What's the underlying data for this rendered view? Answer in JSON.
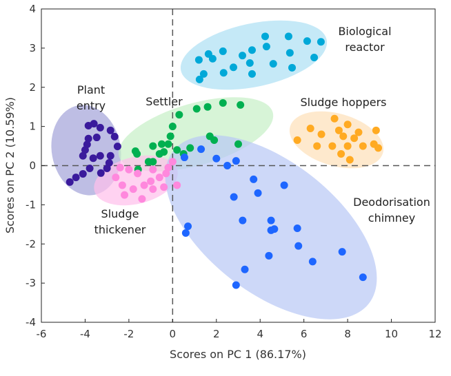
{
  "chart_data": {
    "type": "scatter",
    "xlabel": "Scores on PC 1 (86.17%)",
    "ylabel": "Scores on PC 2 (10.59%)",
    "xlim": [
      -6,
      12
    ],
    "ylim": [
      -4,
      4
    ],
    "xticks": [
      "-6",
      "-4",
      "-2",
      "0",
      "2",
      "4",
      "6",
      "8",
      "10",
      "12"
    ],
    "yticks": [
      "-4",
      "-3",
      "-2",
      "-1",
      "0",
      "1",
      "2",
      "3",
      "4"
    ],
    "grid": false,
    "reference_lines": {
      "x": 0,
      "y": 0,
      "style": "dashed"
    },
    "series": [
      {
        "name": "Plant entry",
        "label_lines": [
          "Plant",
          "entry"
        ],
        "color": "#3a1a9c",
        "ellipse_color": "#a3a3d8",
        "points": [
          [
            -3.85,
            1.02
          ],
          [
            -3.6,
            1.07
          ],
          [
            -3.31,
            0.97
          ],
          [
            -2.84,
            0.9
          ],
          [
            -2.65,
            0.74
          ],
          [
            -3.47,
            0.72
          ],
          [
            -3.85,
            0.69
          ],
          [
            -3.91,
            0.54
          ],
          [
            -2.52,
            0.49
          ],
          [
            -4.0,
            0.4
          ],
          [
            -4.1,
            0.25
          ],
          [
            -3.63,
            0.19
          ],
          [
            -3.31,
            0.25
          ],
          [
            -2.84,
            0.25
          ],
          [
            -2.9,
            0.07
          ],
          [
            -3.0,
            -0.07
          ],
          [
            -3.28,
            -0.19
          ],
          [
            -3.79,
            -0.07
          ],
          [
            -4.1,
            -0.21
          ],
          [
            -4.42,
            -0.3
          ],
          [
            -4.7,
            -0.42
          ]
        ]
      },
      {
        "name": "Settler",
        "label_lines": [
          "Settler"
        ],
        "color": "#00b050",
        "ellipse_color": "#c6efc6",
        "points": [
          [
            0.3,
            1.3
          ],
          [
            1.1,
            1.45
          ],
          [
            1.6,
            1.5
          ],
          [
            2.3,
            1.6
          ],
          [
            3.1,
            1.55
          ],
          [
            0.0,
            1.0
          ],
          [
            1.7,
            0.75
          ],
          [
            1.9,
            0.65
          ],
          [
            3.0,
            0.55
          ],
          [
            0.8,
            0.45
          ],
          [
            -0.1,
            0.75
          ],
          [
            -0.2,
            0.55
          ],
          [
            -0.5,
            0.55
          ],
          [
            -0.9,
            0.5
          ],
          [
            -0.4,
            0.35
          ],
          [
            -0.6,
            0.3
          ],
          [
            -1.7,
            0.37
          ],
          [
            -1.63,
            0.3
          ],
          [
            -1.1,
            0.1
          ],
          [
            -0.9,
            0.1
          ],
          [
            0.2,
            0.4
          ],
          [
            0.5,
            0.3
          ],
          [
            -1.58,
            -0.1
          ]
        ]
      },
      {
        "name": "Sludge thickener",
        "label_lines": [
          "Sludge",
          "thickener"
        ],
        "color": "#ff88dd",
        "ellipse_color": "#ffbfeb",
        "points": [
          [
            -2.6,
            -0.3
          ],
          [
            -2.3,
            -0.5
          ],
          [
            -2.0,
            -0.1
          ],
          [
            -1.6,
            -0.2
          ],
          [
            -1.3,
            -0.5
          ],
          [
            -1.8,
            -0.6
          ],
          [
            -2.2,
            -0.75
          ],
          [
            -1.4,
            -0.85
          ],
          [
            -1.0,
            -0.4
          ],
          [
            -0.9,
            -0.1
          ],
          [
            -0.6,
            -0.3
          ],
          [
            -0.4,
            -0.55
          ],
          [
            -0.9,
            -0.6
          ],
          [
            -0.3,
            -0.2
          ],
          [
            0.0,
            0.1
          ],
          [
            -0.2,
            -0.05
          ],
          [
            -2.4,
            -0.05
          ],
          [
            0.2,
            -0.5
          ]
        ]
      },
      {
        "name": "Biological reactor",
        "label_lines": [
          "Biological",
          "reactor"
        ],
        "color": "#00a8d8",
        "ellipse_color": "#ace0f3",
        "points": [
          [
            1.2,
            2.7
          ],
          [
            1.42,
            2.34
          ],
          [
            1.23,
            2.2
          ],
          [
            1.64,
            2.85
          ],
          [
            1.83,
            2.73
          ],
          [
            2.3,
            2.92
          ],
          [
            2.33,
            2.37
          ],
          [
            2.78,
            2.51
          ],
          [
            3.19,
            2.81
          ],
          [
            3.53,
            2.62
          ],
          [
            3.63,
            2.95
          ],
          [
            3.63,
            2.34
          ],
          [
            4.23,
            3.3
          ],
          [
            4.29,
            3.04
          ],
          [
            4.6,
            2.6
          ],
          [
            5.3,
            3.3
          ],
          [
            5.36,
            2.88
          ],
          [
            5.46,
            2.5
          ],
          [
            6.15,
            3.18
          ],
          [
            6.47,
            2.76
          ],
          [
            6.78,
            3.16
          ]
        ]
      },
      {
        "name": "Sludge hoppers",
        "label_lines": [
          "Sludge hoppers"
        ],
        "color": "#ffaa22",
        "ellipse_color": "#fde0b8",
        "points": [
          [
            5.7,
            0.65
          ],
          [
            6.3,
            0.95
          ],
          [
            6.6,
            0.5
          ],
          [
            6.8,
            0.8
          ],
          [
            7.4,
            1.2
          ],
          [
            7.3,
            0.5
          ],
          [
            7.6,
            0.9
          ],
          [
            7.8,
            0.75
          ],
          [
            7.7,
            0.3
          ],
          [
            8.0,
            0.5
          ],
          [
            8.1,
            0.15
          ],
          [
            8.3,
            0.7
          ],
          [
            8.5,
            0.85
          ],
          [
            8.0,
            1.05
          ],
          [
            8.7,
            0.5
          ],
          [
            9.2,
            0.55
          ],
          [
            9.3,
            0.9
          ],
          [
            9.4,
            0.45
          ]
        ]
      },
      {
        "name": "Deodorisation chimney",
        "label_lines": [
          "Deodorisation",
          "chimney"
        ],
        "color": "#1e66ff",
        "ellipse_color": "#b8c8f5",
        "points": [
          [
            0.54,
            0.21
          ],
          [
            1.3,
            0.42
          ],
          [
            2.0,
            0.18
          ],
          [
            2.5,
            0.0
          ],
          [
            2.9,
            0.12
          ],
          [
            3.7,
            -0.35
          ],
          [
            5.1,
            -0.5
          ],
          [
            3.9,
            -0.7
          ],
          [
            2.8,
            -0.8
          ],
          [
            0.7,
            -1.55
          ],
          [
            0.6,
            -1.72
          ],
          [
            3.2,
            -1.4
          ],
          [
            4.5,
            -1.4
          ],
          [
            4.5,
            -1.65
          ],
          [
            4.65,
            -1.62
          ],
          [
            5.7,
            -1.6
          ],
          [
            5.75,
            -2.05
          ],
          [
            4.4,
            -2.3
          ],
          [
            6.4,
            -2.45
          ],
          [
            7.75,
            -2.2
          ],
          [
            3.3,
            -2.65
          ],
          [
            2.9,
            -3.05
          ],
          [
            8.7,
            -2.85
          ]
        ]
      }
    ]
  }
}
